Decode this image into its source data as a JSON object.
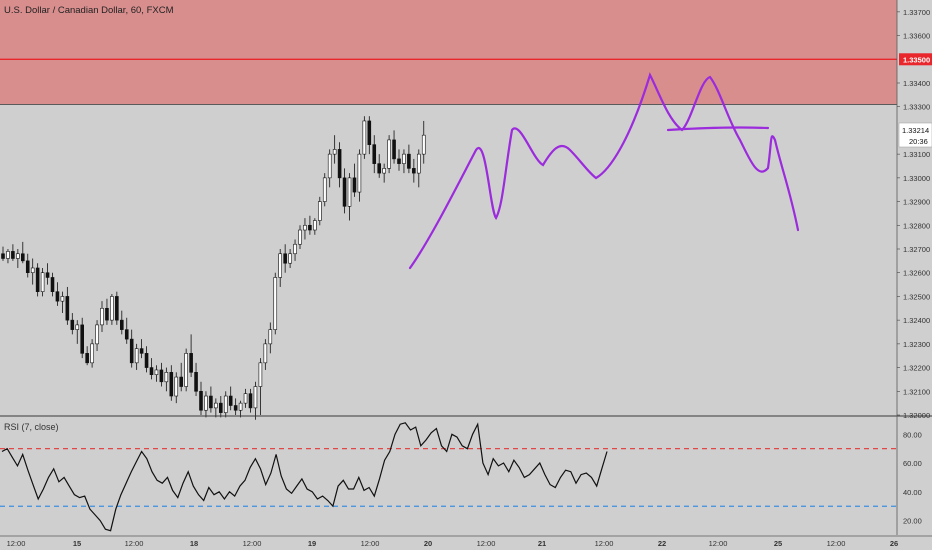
{
  "chart_data": {
    "type": "candlestick",
    "title": "U.S. Dollar / Canadian Dollar, 60, FXCM",
    "price_axis": {
      "ticks": [
        "1.33700",
        "1.33600",
        "1.33400",
        "1.33300",
        "1.33100",
        "1.33000",
        "1.32900",
        "1.32800",
        "1.32700",
        "1.32600",
        "1.32500",
        "1.32400",
        "1.32300",
        "1.32200",
        "1.32100",
        "1.32000"
      ],
      "ylim": [
        1.32,
        1.3375
      ]
    },
    "time_axis": {
      "ticks": [
        "12:00",
        "15",
        "12:00",
        "18",
        "12:00",
        "19",
        "12:00",
        "20",
        "12:00",
        "21",
        "12:00",
        "22",
        "12:00",
        "25",
        "12:00",
        "26"
      ]
    },
    "resistance_zone": {
      "low": 1.3331,
      "high": 1.3375,
      "color": "#d98e8e"
    },
    "resistance_line": {
      "value": 1.335,
      "label": "1.33500",
      "color": "#e8262b"
    },
    "last_price": {
      "label": "1.33214",
      "countdown": "20:36"
    },
    "candles": [
      [
        1.3268,
        1.3271,
        1.3265,
        1.3266
      ],
      [
        1.3266,
        1.327,
        1.3264,
        1.3269
      ],
      [
        1.3269,
        1.3272,
        1.3265,
        1.3266
      ],
      [
        1.3266,
        1.327,
        1.3262,
        1.3268
      ],
      [
        1.3268,
        1.3273,
        1.3264,
        1.3265
      ],
      [
        1.3265,
        1.3268,
        1.3258,
        1.326
      ],
      [
        1.326,
        1.3266,
        1.3255,
        1.3262
      ],
      [
        1.3262,
        1.3264,
        1.325,
        1.3252
      ],
      [
        1.3252,
        1.3262,
        1.325,
        1.326
      ],
      [
        1.326,
        1.3264,
        1.3255,
        1.3258
      ],
      [
        1.3258,
        1.326,
        1.325,
        1.3252
      ],
      [
        1.3252,
        1.3256,
        1.3246,
        1.3248
      ],
      [
        1.3248,
        1.3252,
        1.3243,
        1.325
      ],
      [
        1.325,
        1.3254,
        1.3238,
        1.324
      ],
      [
        1.324,
        1.3243,
        1.3234,
        1.3236
      ],
      [
        1.3236,
        1.324,
        1.323,
        1.3238
      ],
      [
        1.3238,
        1.3241,
        1.3224,
        1.3226
      ],
      [
        1.3226,
        1.3229,
        1.3221,
        1.3222
      ],
      [
        1.3222,
        1.3232,
        1.322,
        1.323
      ],
      [
        1.323,
        1.324,
        1.3227,
        1.3238
      ],
      [
        1.3238,
        1.3248,
        1.3235,
        1.3245
      ],
      [
        1.3245,
        1.3249,
        1.3238,
        1.324
      ],
      [
        1.324,
        1.3251,
        1.3238,
        1.325
      ],
      [
        1.325,
        1.3252,
        1.3238,
        1.324
      ],
      [
        1.324,
        1.3244,
        1.3234,
        1.3236
      ],
      [
        1.3236,
        1.3241,
        1.323,
        1.3232
      ],
      [
        1.3232,
        1.3236,
        1.322,
        1.3222
      ],
      [
        1.3222,
        1.323,
        1.3219,
        1.3228
      ],
      [
        1.3228,
        1.3232,
        1.3224,
        1.3226
      ],
      [
        1.3226,
        1.3229,
        1.3218,
        1.322
      ],
      [
        1.322,
        1.3224,
        1.3215,
        1.3217
      ],
      [
        1.3217,
        1.3221,
        1.3214,
        1.3219
      ],
      [
        1.3219,
        1.3222,
        1.3212,
        1.3214
      ],
      [
        1.3214,
        1.322,
        1.321,
        1.3218
      ],
      [
        1.3218,
        1.3221,
        1.3206,
        1.3208
      ],
      [
        1.3208,
        1.3218,
        1.3205,
        1.3216
      ],
      [
        1.3216,
        1.3222,
        1.321,
        1.3212
      ],
      [
        1.3212,
        1.3228,
        1.321,
        1.3226
      ],
      [
        1.3226,
        1.3234,
        1.3216,
        1.3218
      ],
      [
        1.3218,
        1.3222,
        1.3208,
        1.321
      ],
      [
        1.321,
        1.3214,
        1.32,
        1.3202
      ],
      [
        1.3202,
        1.321,
        1.3199,
        1.3208
      ],
      [
        1.3208,
        1.3212,
        1.3201,
        1.3203
      ],
      [
        1.3203,
        1.3207,
        1.3199,
        1.3205
      ],
      [
        1.3205,
        1.3208,
        1.3199,
        1.3201
      ],
      [
        1.3201,
        1.321,
        1.3199,
        1.3208
      ],
      [
        1.3208,
        1.3212,
        1.3202,
        1.3204
      ],
      [
        1.3204,
        1.3207,
        1.32,
        1.3202
      ],
      [
        1.3202,
        1.3206,
        1.3199,
        1.3205
      ],
      [
        1.3205,
        1.3211,
        1.3203,
        1.3209
      ],
      [
        1.3209,
        1.3211,
        1.3201,
        1.3203
      ],
      [
        1.3203,
        1.3214,
        1.3198,
        1.3212
      ],
      [
        1.3212,
        1.3224,
        1.32,
        1.3222
      ],
      [
        1.3222,
        1.3232,
        1.3219,
        1.323
      ],
      [
        1.323,
        1.3239,
        1.3226,
        1.3236
      ],
      [
        1.3236,
        1.326,
        1.3234,
        1.3258
      ],
      [
        1.3258,
        1.327,
        1.3254,
        1.3268
      ],
      [
        1.3268,
        1.3272,
        1.326,
        1.3264
      ],
      [
        1.3264,
        1.327,
        1.3262,
        1.3268
      ],
      [
        1.3268,
        1.3274,
        1.3265,
        1.3272
      ],
      [
        1.3272,
        1.328,
        1.327,
        1.3278
      ],
      [
        1.3278,
        1.3283,
        1.3274,
        1.328
      ],
      [
        1.328,
        1.3284,
        1.3276,
        1.3278
      ],
      [
        1.3278,
        1.3283,
        1.3276,
        1.3282
      ],
      [
        1.3282,
        1.3292,
        1.328,
        1.329
      ],
      [
        1.329,
        1.3302,
        1.3288,
        1.33
      ],
      [
        1.33,
        1.3312,
        1.3296,
        1.331
      ],
      [
        1.331,
        1.3318,
        1.3306,
        1.3312
      ],
      [
        1.3312,
        1.3315,
        1.3296,
        1.33
      ],
      [
        1.33,
        1.3304,
        1.3285,
        1.3288
      ],
      [
        1.3288,
        1.3302,
        1.3282,
        1.33
      ],
      [
        1.33,
        1.3306,
        1.3292,
        1.3294
      ],
      [
        1.3294,
        1.3312,
        1.329,
        1.331
      ],
      [
        1.331,
        1.3326,
        1.3308,
        1.3324
      ],
      [
        1.3324,
        1.3326,
        1.331,
        1.3314
      ],
      [
        1.3314,
        1.3318,
        1.3302,
        1.3306
      ],
      [
        1.3306,
        1.331,
        1.33,
        1.3302
      ],
      [
        1.3302,
        1.3306,
        1.3298,
        1.3304
      ],
      [
        1.3304,
        1.3318,
        1.3302,
        1.3316
      ],
      [
        1.3316,
        1.332,
        1.3306,
        1.3308
      ],
      [
        1.3308,
        1.3312,
        1.3303,
        1.3306
      ],
      [
        1.3306,
        1.3312,
        1.3302,
        1.331
      ],
      [
        1.331,
        1.3314,
        1.3302,
        1.3304
      ],
      [
        1.3304,
        1.3308,
        1.3298,
        1.3302
      ],
      [
        1.3302,
        1.3312,
        1.3296,
        1.331
      ],
      [
        1.331,
        1.3324,
        1.3306,
        1.3318
      ]
    ],
    "rsi": {
      "title": "RSI (7, close)",
      "ticks": [
        "80.00",
        "60.00",
        "40.00",
        "20.00"
      ],
      "ylim": [
        10,
        92
      ],
      "upper": 70,
      "lower": 30,
      "values": [
        68,
        70,
        64,
        58,
        66,
        55,
        45,
        35,
        42,
        50,
        56,
        47,
        50,
        44,
        38,
        36,
        37,
        28,
        24,
        20,
        14,
        13,
        28,
        38,
        46,
        54,
        61,
        68,
        63,
        54,
        48,
        46,
        50,
        41,
        36,
        46,
        54,
        44,
        38,
        34,
        43,
        38,
        40,
        35,
        40,
        37,
        44,
        48,
        57,
        63,
        56,
        45,
        53,
        66,
        51,
        42,
        39,
        44,
        49,
        42,
        40,
        35,
        37,
        34,
        30,
        44,
        48,
        42,
        42,
        50,
        41,
        43,
        37,
        49,
        62,
        68,
        80,
        87,
        88,
        83,
        85,
        72,
        76,
        81,
        84,
        72,
        68,
        80,
        78,
        72,
        70,
        80,
        87,
        60,
        52,
        63,
        58,
        60,
        54,
        62,
        57,
        50,
        52,
        56,
        60,
        52,
        45,
        43,
        50,
        55,
        54,
        46,
        52,
        53,
        50,
        44,
        56,
        68
      ]
    }
  }
}
